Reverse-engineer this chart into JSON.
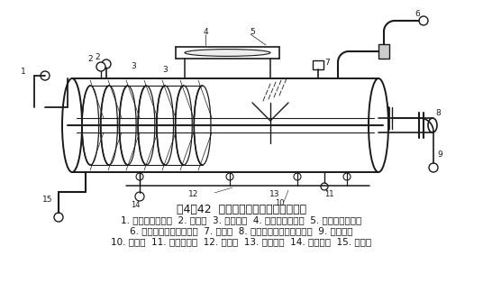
{
  "title": "图4－42  氨制冷系统的中间冷却塔结构",
  "caption_line1": "1. 接调节站进口管  2. 放油口  3. 冷却盘管  4. 金属液面指示器  5. 接远距离液位器",
  "caption_line2": "6. 氨气出口（至高压级）  7. 安全阀  8. 氨气入口（从低压级来）  9. 氨液进口",
  "caption_line3": "10. 中心管  11. 压力表接头  12. 平衡管  13. 伞形挡板  14. 放液阀口  15. 进液管",
  "bg_color": "#ffffff",
  "diagram_color": "#1a1a1a",
  "title_fontsize": 9,
  "caption_fontsize": 7.5,
  "figsize": [
    5.36,
    3.14
  ],
  "dpi": 100
}
